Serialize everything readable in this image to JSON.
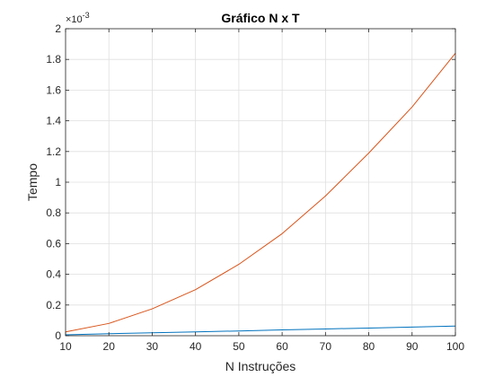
{
  "chart_data": {
    "type": "line",
    "title": "Gráfico N x T",
    "xlabel": "N Instruções",
    "ylabel": "Tempo",
    "xlim": [
      10,
      100
    ],
    "ylim": [
      0,
      2
    ],
    "y_exponent_label": "×10",
    "y_exponent_power": "-3",
    "x_ticks": [
      10,
      20,
      30,
      40,
      50,
      60,
      70,
      80,
      90,
      100
    ],
    "x_tick_labels": [
      "10",
      "20",
      "30",
      "40",
      "50",
      "60",
      "70",
      "80",
      "90",
      "100"
    ],
    "y_ticks": [
      0,
      0.2,
      0.4,
      0.6,
      0.8,
      1,
      1.2,
      1.4,
      1.6,
      1.8,
      2
    ],
    "y_tick_labels": [
      "0",
      "0.2",
      "0.4",
      "0.6",
      "0.8",
      "1",
      "1.2",
      "1.4",
      "1.6",
      "1.8",
      "2"
    ],
    "grid": true,
    "x": [
      10,
      20,
      30,
      40,
      50,
      60,
      70,
      80,
      90,
      100
    ],
    "series": [
      {
        "color": "#0072BD",
        "values": [
          0.006,
          0.013,
          0.019,
          0.025,
          0.031,
          0.038,
          0.044,
          0.05,
          0.056,
          0.063
        ]
      },
      {
        "color": "#D95319",
        "values": [
          0.025,
          0.08,
          0.175,
          0.3,
          0.465,
          0.665,
          0.91,
          1.19,
          1.49,
          1.84
        ]
      }
    ]
  }
}
